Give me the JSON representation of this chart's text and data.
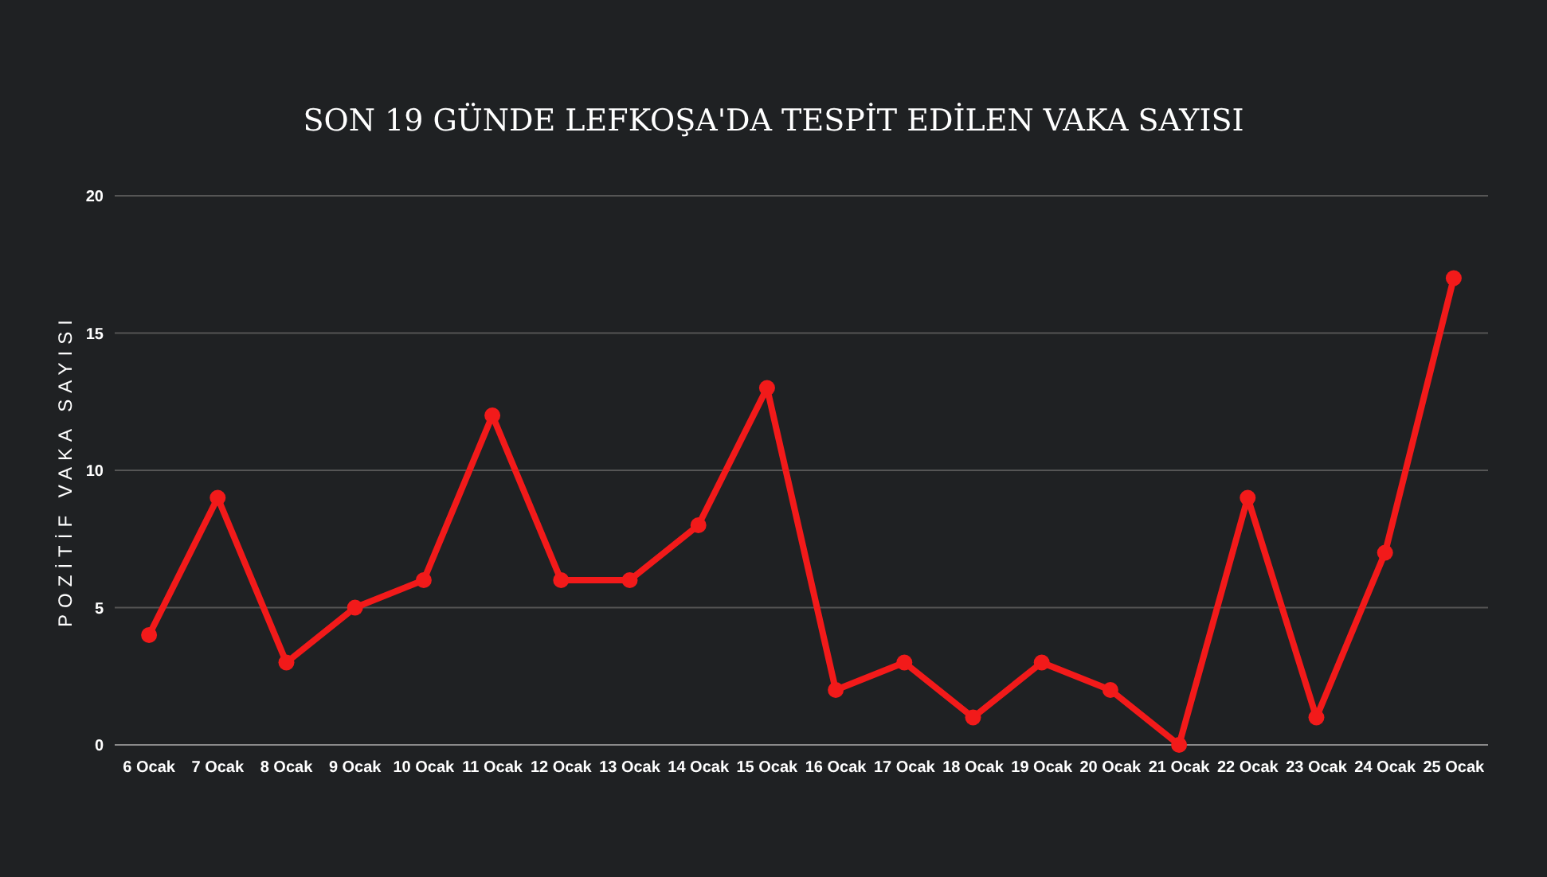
{
  "chart_data": {
    "type": "line",
    "title": "SON 19 GÜNDE LEFKOŞA'DA TESPİT EDİLEN VAKA SAYISI",
    "ylabel": "POZİTİF VAKA SAYISI",
    "categories": [
      "6 Ocak",
      "7 Ocak",
      "8 Ocak",
      "9 Ocak",
      "10 Ocak",
      "11 Ocak",
      "12 Ocak",
      "13 Ocak",
      "14 Ocak",
      "15 Ocak",
      "16 Ocak",
      "17 Ocak",
      "18 Ocak",
      "19 Ocak",
      "20 Ocak",
      "21 Ocak",
      "22 Ocak",
      "23 Ocak",
      "24 Ocak",
      "25 Ocak"
    ],
    "series": [
      {
        "color": "#f21a1a",
        "values": [
          4,
          9,
          3,
          5,
          6,
          12,
          6,
          6,
          8,
          13,
          2,
          3,
          1,
          3,
          2,
          0,
          9,
          1,
          7,
          17
        ]
      }
    ],
    "ylim": [
      0,
      20
    ],
    "yticks": [
      0,
      5,
      10,
      15,
      20
    ],
    "grid": "y",
    "marker": "circle",
    "line_style": "solid"
  }
}
